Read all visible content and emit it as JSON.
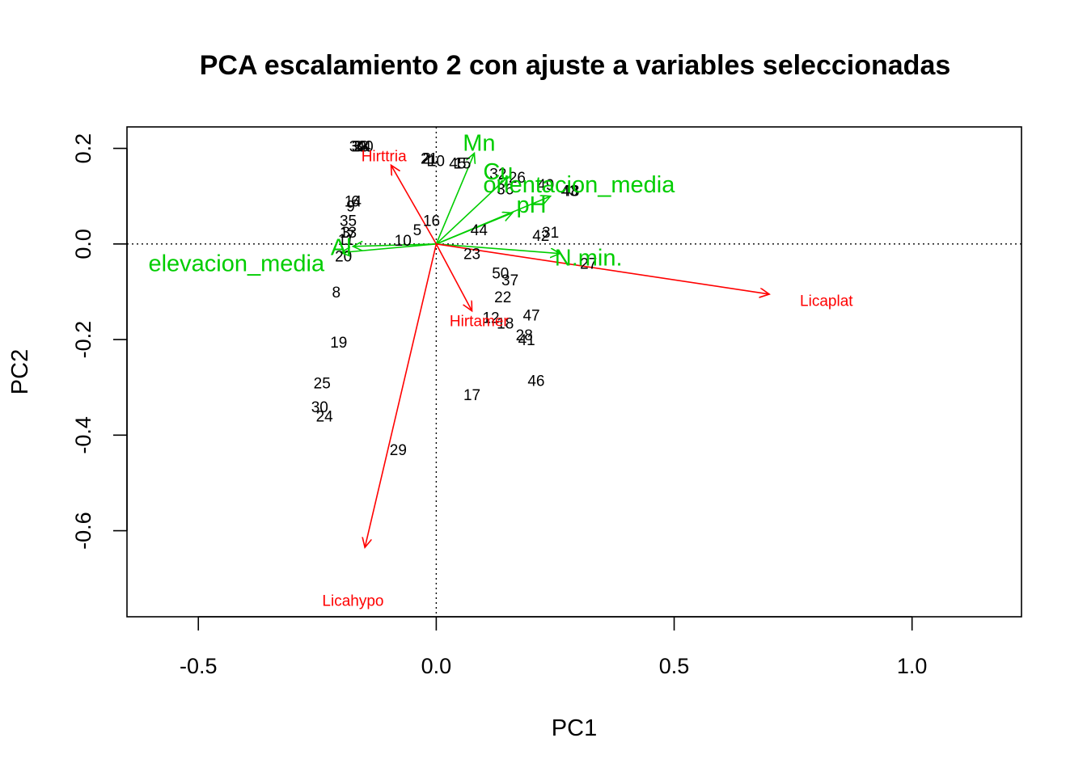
{
  "chart_data": {
    "type": "scatter",
    "title": "PCA escalamiento 2 con ajuste a variables seleccionadas",
    "xlabel": "PC1",
    "ylabel": "PC2",
    "xlim": [
      -0.65,
      1.23
    ],
    "ylim": [
      -0.78,
      0.245
    ],
    "x_ticks": [
      -0.5,
      0.0,
      0.5,
      1.0
    ],
    "x_tick_labels": [
      "-0.5",
      "0.0",
      "0.5",
      "1.0"
    ],
    "y_ticks": [
      -0.6,
      -0.4,
      -0.2,
      0.0,
      0.2
    ],
    "y_tick_labels": [
      "-0.6",
      "-0.4",
      "-0.2",
      "0.0",
      "0.2"
    ],
    "reference_lines": {
      "x": 0,
      "y": 0,
      "style": "dotted"
    },
    "colors": {
      "sites": "#000000",
      "species": "#ff0000",
      "environment": "#00cd00"
    },
    "sites": [
      {
        "label": "39",
        "x": -0.165,
        "y": 0.205
      },
      {
        "label": "33",
        "x": -0.16,
        "y": 0.205
      },
      {
        "label": "34",
        "x": -0.155,
        "y": 0.205
      },
      {
        "label": "40",
        "x": -0.15,
        "y": 0.205
      },
      {
        "label": "2",
        "x": -0.02,
        "y": 0.18
      },
      {
        "label": "21",
        "x": -0.015,
        "y": 0.18
      },
      {
        "label": "4",
        "x": -0.02,
        "y": 0.175
      },
      {
        "label": "10",
        "x": 0.0,
        "y": 0.175
      },
      {
        "label": "45",
        "x": 0.045,
        "y": 0.17
      },
      {
        "label": "15",
        "x": 0.055,
        "y": 0.17
      },
      {
        "label": "32",
        "x": 0.13,
        "y": 0.148
      },
      {
        "label": "26",
        "x": 0.17,
        "y": 0.14
      },
      {
        "label": "36",
        "x": 0.145,
        "y": 0.116
      },
      {
        "label": "49",
        "x": 0.23,
        "y": 0.125
      },
      {
        "label": "43",
        "x": 0.28,
        "y": 0.112
      },
      {
        "label": "48",
        "x": 0.283,
        "y": 0.112
      },
      {
        "label": "14",
        "x": -0.175,
        "y": 0.09
      },
      {
        "label": "6",
        "x": -0.17,
        "y": 0.09
      },
      {
        "label": "9",
        "x": -0.18,
        "y": 0.08
      },
      {
        "label": "16",
        "x": -0.01,
        "y": 0.05
      },
      {
        "label": "35",
        "x": -0.185,
        "y": 0.05
      },
      {
        "label": "44",
        "x": 0.09,
        "y": 0.03
      },
      {
        "label": "31",
        "x": 0.24,
        "y": 0.025
      },
      {
        "label": "42",
        "x": 0.22,
        "y": 0.018
      },
      {
        "label": "5",
        "x": -0.04,
        "y": 0.03
      },
      {
        "label": "3",
        "x": -0.19,
        "y": 0.025
      },
      {
        "label": "13",
        "x": -0.185,
        "y": 0.025
      },
      {
        "label": "7",
        "x": -0.18,
        "y": 0.018
      },
      {
        "label": "11",
        "x": -0.19,
        "y": 0.01
      },
      {
        "label": "10",
        "x": -0.07,
        "y": 0.008
      },
      {
        "label": "20",
        "x": -0.195,
        "y": -0.025
      },
      {
        "label": "23",
        "x": 0.075,
        "y": -0.02
      },
      {
        "label": "27",
        "x": 0.32,
        "y": -0.04
      },
      {
        "label": "50",
        "x": 0.135,
        "y": -0.06
      },
      {
        "label": "37",
        "x": 0.155,
        "y": -0.075
      },
      {
        "label": "8",
        "x": -0.21,
        "y": -0.1
      },
      {
        "label": "22",
        "x": 0.14,
        "y": -0.11
      },
      {
        "label": "47",
        "x": 0.2,
        "y": -0.148
      },
      {
        "label": "12",
        "x": 0.115,
        "y": -0.153
      },
      {
        "label": "18",
        "x": 0.145,
        "y": -0.165
      },
      {
        "label": "28",
        "x": 0.185,
        "y": -0.19
      },
      {
        "label": "41",
        "x": 0.19,
        "y": -0.2
      },
      {
        "label": "19",
        "x": -0.205,
        "y": -0.205
      },
      {
        "label": "46",
        "x": 0.21,
        "y": -0.285
      },
      {
        "label": "25",
        "x": -0.24,
        "y": -0.29
      },
      {
        "label": "17",
        "x": 0.075,
        "y": -0.315
      },
      {
        "label": "30",
        "x": -0.245,
        "y": -0.34
      },
      {
        "label": "24",
        "x": -0.235,
        "y": -0.36
      },
      {
        "label": "29",
        "x": -0.08,
        "y": -0.43
      }
    ],
    "species": [
      {
        "label": "Hirttria",
        "x": -0.095,
        "y": 0.165,
        "label_x": -0.11,
        "label_y": 0.185
      },
      {
        "label": "Licaplat",
        "x": 0.7,
        "y": -0.105,
        "label_x": 0.82,
        "label_y": -0.118
      },
      {
        "label": "Hirtamer",
        "x": 0.075,
        "y": -0.14,
        "label_x": 0.09,
        "label_y": -0.16
      },
      {
        "label": "Licahypo",
        "x": -0.15,
        "y": -0.635,
        "label_x": -0.175,
        "label_y": -0.745
      }
    ],
    "environment": [
      {
        "label": "Mn",
        "x": 0.08,
        "y": 0.19,
        "label_x": 0.09,
        "label_y": 0.212
      },
      {
        "label": "Cu",
        "x": 0.15,
        "y": 0.14,
        "label_x": 0.13,
        "label_y": 0.152
      },
      {
        "label": "orientacion_media",
        "x": 0.24,
        "y": 0.1,
        "label_x": 0.3,
        "label_y": 0.125
      },
      {
        "label": "pH",
        "x": 0.16,
        "y": 0.065,
        "label_x": 0.2,
        "label_y": 0.083
      },
      {
        "label": "N.min.",
        "x": 0.26,
        "y": -0.02,
        "label_x": 0.32,
        "label_y": -0.028
      },
      {
        "label": "Al",
        "x": -0.175,
        "y": -0.005,
        "label_x": -0.2,
        "label_y": -0.006
      },
      {
        "label": "elevacion_media",
        "x": -0.2,
        "y": -0.018,
        "label_x": -0.42,
        "label_y": -0.04
      }
    ]
  }
}
